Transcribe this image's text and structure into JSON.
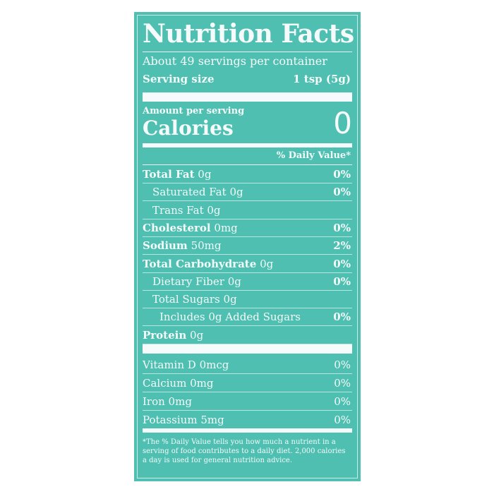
{
  "title": "Nutrition Facts",
  "servings": "About 49 servings per container",
  "serving_size_label": "Serving size",
  "serving_size_value": "1 tsp (5g)",
  "amount_per_serving": "Amount per serving",
  "calories_label": "Calories",
  "calories_value": "0",
  "daily_value_header": "% Daily Value*",
  "nutrients": [
    {
      "name": "Total Fat",
      "amount": "0g",
      "dv": "0%"
    },
    {
      "name": "Saturated Fat",
      "amount": "0g",
      "dv": "0%"
    },
    {
      "name": "Trans Fat",
      "amount": "0g",
      "dv": ""
    },
    {
      "name": "Cholesterol",
      "amount": "0mg",
      "dv": "0%"
    },
    {
      "name": "Sodium",
      "amount": "50mg",
      "dv": "2%"
    },
    {
      "name": "Total Carbohydrate",
      "amount": "0g",
      "dv": "0%"
    },
    {
      "name": "Dietary Fiber",
      "amount": "0g",
      "dv": "0%"
    },
    {
      "name": "Total Sugars",
      "amount": "0g",
      "dv": ""
    },
    {
      "name": "Includes 0g Added Sugars",
      "amount": "",
      "dv": "0%"
    },
    {
      "name": "Protein",
      "amount": "0g",
      "dv": ""
    }
  ],
  "vitamins": [
    {
      "name": "Vitamin D 0mcg",
      "dv": "0%"
    },
    {
      "name": "Calcium 0mg",
      "dv": "0%"
    },
    {
      "name": "Iron 0mg",
      "dv": "0%"
    },
    {
      "name": "Potassium 5mg",
      "dv": "0%"
    }
  ],
  "footnote": "*The % Daily Value tells you how much a nutrient in a serving of food contributes to a daily diet. 2,000 calories a day is used for general nutrition advice.",
  "colors": {
    "background": "#4ebfb1",
    "text": "#f4fbfa"
  }
}
